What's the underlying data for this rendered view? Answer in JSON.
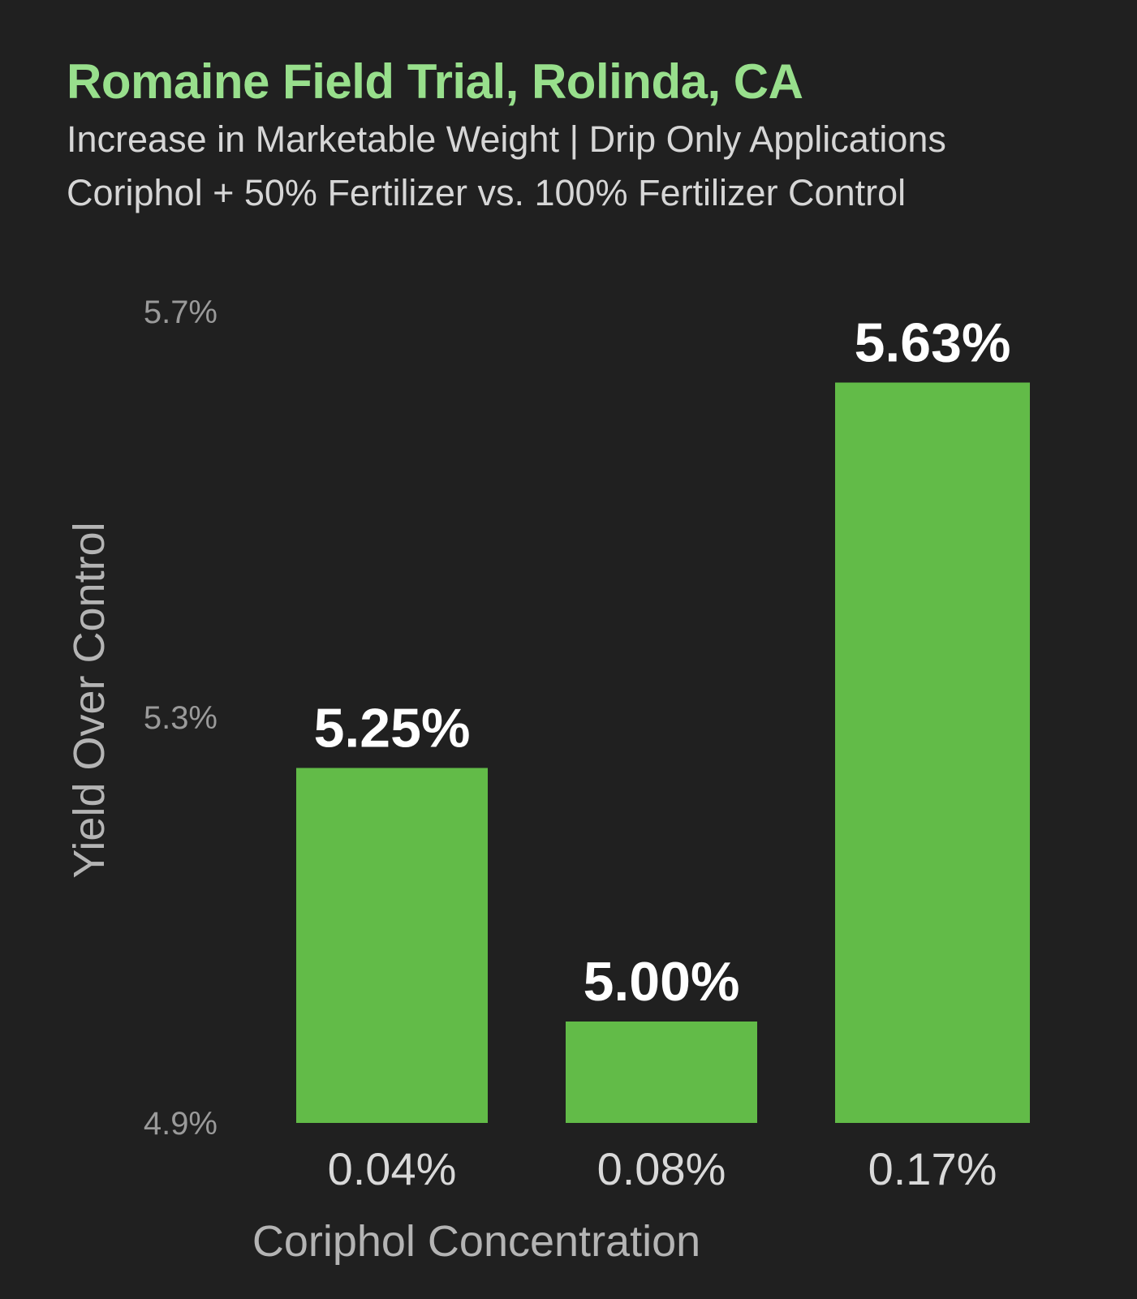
{
  "chart_data": {
    "type": "bar",
    "title": "Romaine Field Trial, Rolinda, CA",
    "subtitle_lines": [
      "Increase in Marketable Weight | Drip Only Applications",
      "Coriphol + 50% Fertilizer vs. 100% Fertilizer Control"
    ],
    "xlabel": "Coriphol Concentration",
    "ylabel": "Yield Over Control",
    "categories": [
      "0.04%",
      "0.08%",
      "0.17%"
    ],
    "values": [
      5.25,
      5.0,
      5.63
    ],
    "data_labels": [
      "5.25%",
      "5.00%",
      "5.63%"
    ],
    "ylim": [
      4.9,
      5.7
    ],
    "yticks": [
      4.9,
      5.3,
      5.7
    ],
    "ytick_labels": [
      "4.9%",
      "5.3%",
      "5.7%"
    ],
    "grid": false,
    "legend": "none",
    "colors": {
      "bar": "#62bb48",
      "title": "#98df8c",
      "background": "#202020"
    }
  }
}
